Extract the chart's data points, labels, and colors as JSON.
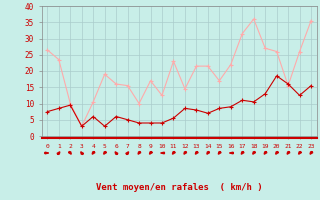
{
  "x": [
    0,
    1,
    2,
    3,
    4,
    5,
    6,
    7,
    8,
    9,
    10,
    11,
    12,
    13,
    14,
    15,
    16,
    17,
    18,
    19,
    20,
    21,
    22,
    23
  ],
  "wind_avg": [
    7.5,
    8.5,
    9.5,
    3.0,
    6.0,
    3.0,
    6.0,
    5.0,
    4.0,
    4.0,
    4.0,
    5.5,
    8.5,
    8.0,
    7.0,
    8.5,
    9.0,
    11.0,
    10.5,
    13.0,
    18.5,
    16.0,
    12.5,
    15.5
  ],
  "wind_gust": [
    26.5,
    23.5,
    10.0,
    3.0,
    10.5,
    19.0,
    16.0,
    15.5,
    10.0,
    17.0,
    12.5,
    23.0,
    14.5,
    21.5,
    21.5,
    17.0,
    22.0,
    31.5,
    36.0,
    27.0,
    26.0,
    15.5,
    26.0,
    35.5
  ],
  "bg_color": "#c8eee8",
  "grid_color": "#aacccc",
  "line_avg_color": "#cc0000",
  "line_gust_color": "#ffaaaa",
  "xlabel": "Vent moyen/en rafales  ( km/h )",
  "ylim": [
    0,
    40
  ],
  "yticks": [
    0,
    5,
    10,
    15,
    20,
    25,
    30,
    35,
    40
  ],
  "arrow_angles": [
    90,
    45,
    135,
    315,
    225,
    225,
    315,
    45,
    225,
    225,
    270,
    225,
    225,
    225,
    225,
    225,
    270,
    225,
    225,
    225,
    225,
    225,
    225,
    225
  ]
}
